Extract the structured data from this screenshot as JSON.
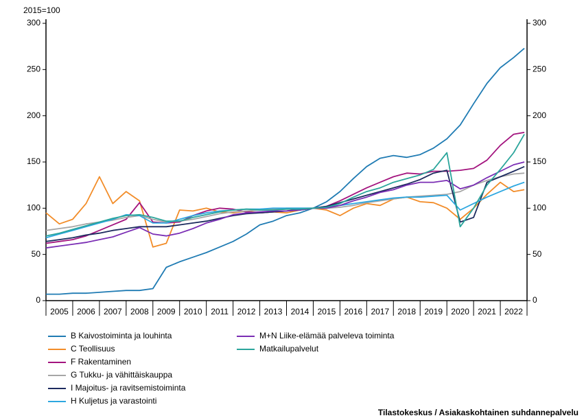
{
  "chart_data": {
    "type": "line",
    "unit_label": "2015=100",
    "source": "Tilastokeskus / Asiakaskohtainen suhdannepalvelu",
    "categories": [
      "2005",
      "2006",
      "2007",
      "2008",
      "2009",
      "2010",
      "2011",
      "2012",
      "2013",
      "2014",
      "2015",
      "2016",
      "2017",
      "2018",
      "2019",
      "2020",
      "2021",
      "2022"
    ],
    "x": [
      2005,
      2005.5,
      2006,
      2006.5,
      2007,
      2007.5,
      2008,
      2008.5,
      2009,
      2009.5,
      2010,
      2010.5,
      2011,
      2011.5,
      2012,
      2012.5,
      2013,
      2013.5,
      2014,
      2014.5,
      2015,
      2015.5,
      2016,
      2016.5,
      2017,
      2017.5,
      2018,
      2018.5,
      2019,
      2019.5,
      2020,
      2020.5,
      2021,
      2021.5,
      2022,
      2022.5,
      2022.9
    ],
    "xlim": [
      2005,
      2023
    ],
    "xticks": [
      2005,
      2006,
      2007,
      2008,
      2009,
      2010,
      2011,
      2012,
      2013,
      2014,
      2015,
      2016,
      2017,
      2018,
      2019,
      2020,
      2021,
      2022,
      2023
    ],
    "ylim": [
      0,
      300
    ],
    "yticks": [
      0,
      50,
      100,
      150,
      200,
      250,
      300
    ],
    "y2lim": [
      0,
      300
    ],
    "y2ticks": [
      0,
      50,
      100,
      150,
      200,
      250,
      300
    ],
    "series": [
      {
        "name": "B Kaivostoiminta ja louhinta",
        "color": "#1f7bb3",
        "values": [
          7,
          7,
          8,
          8,
          9,
          10,
          11,
          11,
          13,
          36,
          42,
          47,
          52,
          58,
          64,
          72,
          82,
          86,
          92,
          95,
          100,
          107,
          118,
          132,
          145,
          154,
          157,
          155,
          158,
          165,
          175,
          190,
          213,
          235,
          252,
          263,
          273
        ]
      },
      {
        "name": "C Teollisuus",
        "color": "#f28c28",
        "values": [
          95,
          83,
          88,
          105,
          134,
          105,
          118,
          108,
          58,
          62,
          98,
          97,
          100,
          96,
          95,
          97,
          95,
          96,
          95,
          98,
          100,
          98,
          92,
          100,
          105,
          103,
          110,
          112,
          107,
          106,
          100,
          88,
          100,
          115,
          128,
          118,
          120
        ]
      },
      {
        "name": "F Rakentaminen",
        "color": "#a3137e",
        "values": [
          62,
          64,
          66,
          70,
          76,
          82,
          88,
          106,
          85,
          84,
          85,
          92,
          97,
          100,
          99,
          96,
          95,
          96,
          97,
          99,
          100,
          102,
          108,
          115,
          122,
          128,
          134,
          138,
          137,
          140,
          140,
          141,
          143,
          152,
          168,
          180,
          182
        ]
      },
      {
        "name": "G Tukku- ja vähittäiskauppa",
        "color": "#a6a6a6",
        "values": [
          76,
          78,
          80,
          83,
          85,
          87,
          90,
          92,
          88,
          85,
          86,
          88,
          91,
          94,
          96,
          97,
          98,
          99,
          100,
          100,
          100,
          100,
          101,
          103,
          106,
          108,
          110,
          112,
          113,
          114,
          115,
          118,
          125,
          130,
          134,
          137,
          138
        ]
      },
      {
        "name": "I Majoitus- ja ravitsemistoiminta",
        "color": "#1c2a5e",
        "values": [
          64,
          66,
          68,
          71,
          73,
          76,
          78,
          80,
          80,
          80,
          82,
          84,
          86,
          89,
          92,
          94,
          95,
          96,
          97,
          98,
          100,
          102,
          106,
          110,
          114,
          118,
          122,
          126,
          131,
          138,
          141,
          85,
          90,
          128,
          134,
          140,
          145
        ]
      },
      {
        "name": "H Kuljetus ja varastointi",
        "color": "#2ca7e0",
        "values": [
          68,
          72,
          76,
          80,
          84,
          88,
          93,
          92,
          84,
          84,
          88,
          92,
          95,
          97,
          98,
          99,
          99,
          100,
          100,
          100,
          100,
          101,
          103,
          105,
          107,
          109,
          111,
          112,
          112,
          113,
          114,
          98,
          105,
          112,
          118,
          124,
          128
        ]
      },
      {
        "name": "M+N Liike-elämää palveleva toiminta",
        "color": "#7a2db4",
        "values": [
          57,
          59,
          61,
          63,
          66,
          69,
          74,
          79,
          72,
          70,
          73,
          78,
          84,
          88,
          93,
          95,
          96,
          97,
          97,
          98,
          100,
          100,
          103,
          108,
          112,
          117,
          120,
          125,
          128,
          128,
          130,
          121,
          125,
          133,
          140,
          147,
          150
        ]
      },
      {
        "name": "Matkailupalvelut",
        "color": "#2aa59b",
        "values": [
          70,
          73,
          77,
          81,
          85,
          89,
          92,
          93,
          90,
          86,
          86,
          90,
          93,
          96,
          98,
          99,
          98,
          98,
          99,
          99,
          100,
          101,
          105,
          112,
          118,
          122,
          128,
          132,
          136,
          142,
          160,
          80,
          100,
          125,
          142,
          160,
          180
        ]
      }
    ]
  }
}
